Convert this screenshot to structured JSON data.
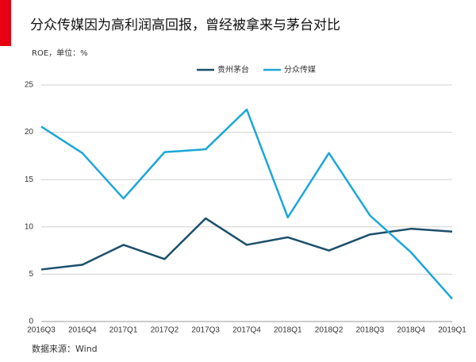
{
  "chart_data": {
    "type": "line",
    "title": "分众传媒因为高利润高回报，曾经被拿来与茅台对比",
    "subtitle": "ROE，单位：%",
    "source": "数据来源：Wind",
    "categories": [
      "2016Q3",
      "2016Q4",
      "2017Q1",
      "2017Q2",
      "2017Q3",
      "2017Q4",
      "2018Q1",
      "2018Q2",
      "2018Q3",
      "2018Q4",
      "2019Q1"
    ],
    "series": [
      {
        "name": "贵州茅台",
        "color": "#1b4f6b",
        "values": [
          5.5,
          6.0,
          8.1,
          6.6,
          10.9,
          8.1,
          8.9,
          7.5,
          9.2,
          9.8,
          9.5
        ]
      },
      {
        "name": "分众传媒",
        "color": "#1ba6d9",
        "values": [
          20.6,
          17.8,
          13.0,
          17.9,
          18.2,
          22.4,
          11.0,
          17.8,
          11.2,
          7.3,
          2.4
        ]
      }
    ],
    "ylim": [
      0,
      25
    ],
    "yticks": [
      0,
      5,
      10,
      15,
      20,
      25
    ],
    "grid": true,
    "legend": "top"
  }
}
